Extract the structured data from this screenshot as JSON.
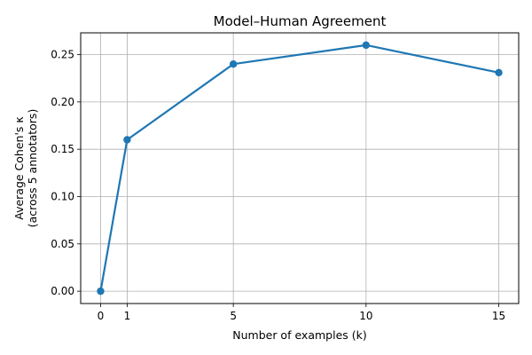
{
  "chart_data": {
    "type": "line",
    "title": "Model–Human Agreement",
    "xlabel": "Number of examples (k)",
    "ylabel_lines": [
      "Average Cohen's κ",
      "(across 5 annotators)"
    ],
    "x": [
      0,
      1,
      5,
      10,
      15
    ],
    "series": [
      {
        "values": [
          0.0,
          0.16,
          0.24,
          0.26,
          0.231
        ]
      }
    ],
    "xticks": [
      0,
      1,
      5,
      10,
      15
    ],
    "xtick_labels": [
      "0",
      "1",
      "5",
      "10",
      "15"
    ],
    "yticks": [
      0.0,
      0.05,
      0.1,
      0.15,
      0.2,
      0.25
    ],
    "ytick_labels": [
      "0.00",
      "0.05",
      "0.10",
      "0.15",
      "0.20",
      "0.25"
    ],
    "xlim": [
      -0.75,
      15.75
    ],
    "ylim": [
      -0.013,
      0.273
    ],
    "grid": true,
    "line_color": "#1f77b4",
    "marker": "circle"
  }
}
